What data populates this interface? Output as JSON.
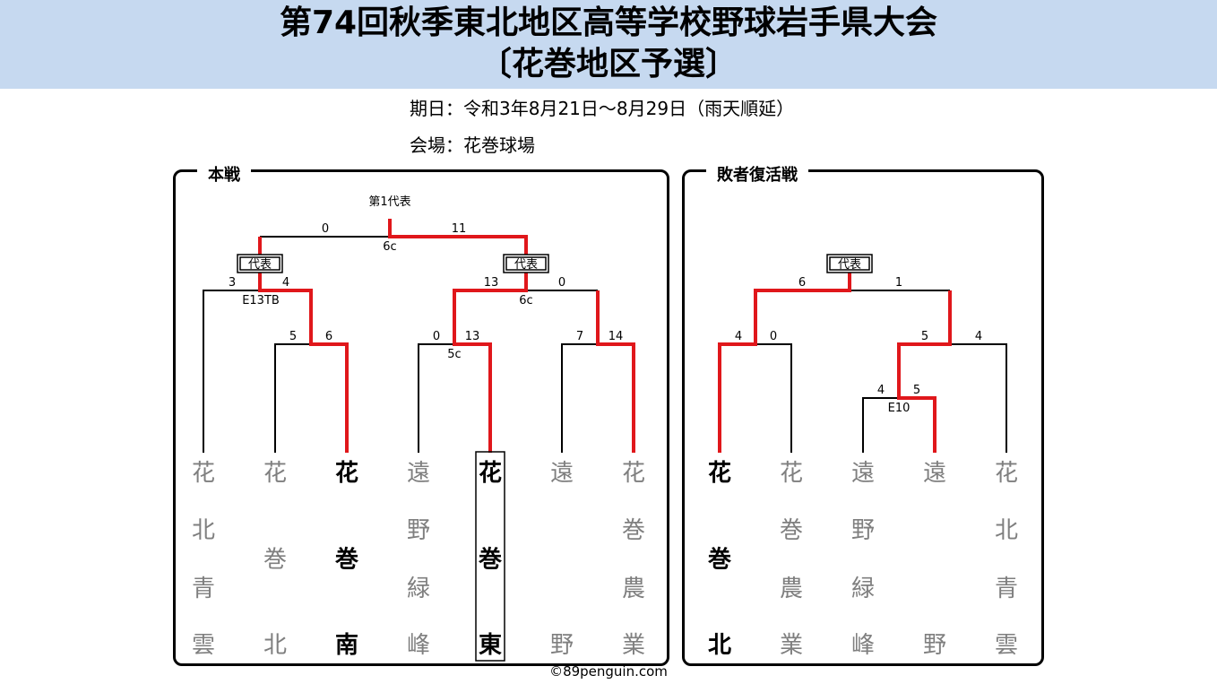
{
  "header": {
    "title_line1": "第74回秋季東北地区高等学校野球岩手県大会",
    "title_line2": "〔花巻地区予選〕"
  },
  "info": {
    "date": "期日：令和3年8月21日～8月29日（雨天順延）",
    "venue": "会場：花巻球場"
  },
  "main_bracket": {
    "label": "本戦",
    "top_label": "第1代表",
    "rep_badge": "代表",
    "teams": [
      {
        "name": "花北青雲",
        "winner": false,
        "boxed": false
      },
      {
        "name": "花巻北",
        "winner": false,
        "boxed": false
      },
      {
        "name": "花巻南",
        "winner": true,
        "boxed": false
      },
      {
        "name": "遠野緑峰",
        "winner": false,
        "boxed": false
      },
      {
        "name": "花巻東",
        "winner": true,
        "boxed": true
      },
      {
        "name": "遠野",
        "winner": false,
        "boxed": false
      },
      {
        "name": "花巻農業",
        "winner": false,
        "boxed": false
      }
    ],
    "scores": [
      {
        "value": "0",
        "note": ""
      },
      {
        "value": "11",
        "note": ""
      },
      {
        "value": "6c",
        "note": "innings"
      },
      {
        "value": "3",
        "note": ""
      },
      {
        "value": "4",
        "note": ""
      },
      {
        "value": "E13TB",
        "note": "innings"
      },
      {
        "value": "13",
        "note": ""
      },
      {
        "value": "0",
        "note": ""
      },
      {
        "value": "6c",
        "note": "innings"
      },
      {
        "value": "5",
        "note": ""
      },
      {
        "value": "6",
        "note": ""
      },
      {
        "value": "0",
        "note": ""
      },
      {
        "value": "13",
        "note": ""
      },
      {
        "value": "5c",
        "note": "innings"
      },
      {
        "value": "7",
        "note": ""
      },
      {
        "value": "14",
        "note": ""
      }
    ]
  },
  "repechage_bracket": {
    "label": "敗者復活戦",
    "rep_badge": "代表",
    "teams": [
      {
        "name": "花巻北",
        "winner": true
      },
      {
        "name": "花巻農業",
        "winner": false
      },
      {
        "name": "遠野緑峰",
        "winner": false
      },
      {
        "name": "遠野",
        "winner": false
      },
      {
        "name": "花北青雲",
        "winner": false
      }
    ],
    "scores": [
      {
        "value": "6"
      },
      {
        "value": "1"
      },
      {
        "value": "4"
      },
      {
        "value": "0"
      },
      {
        "value": "5"
      },
      {
        "value": "4"
      },
      {
        "value": "4"
      },
      {
        "value": "5"
      },
      {
        "value": "E10"
      }
    ]
  },
  "colors": {
    "header_bg": "#c6d9f0",
    "win_line": "#e0171b",
    "line": "#000000",
    "loser_text": "#7f7f7f"
  },
  "footer": "©89penguin.com"
}
